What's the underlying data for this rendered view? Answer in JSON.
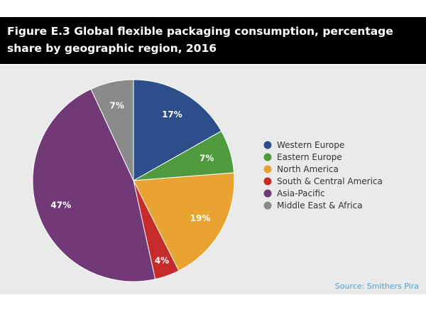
{
  "title": "Figure E.3 Global flexible packaging consumption, percentage share by geographic region, 2016",
  "source": "Source: Smithers Pira",
  "chart_data": {
    "type": "pie",
    "title": "Figure E.3 Global flexible packaging consumption, percentage share by geographic region, 2016",
    "slices": [
      {
        "name": "Western Europe",
        "value": 17,
        "label": "17%",
        "color": "#2c4e8a"
      },
      {
        "name": "Eastern Europe",
        "value": 7,
        "label": "7%",
        "color": "#4e9a3c"
      },
      {
        "name": "North America",
        "value": 19,
        "label": "19%",
        "color": "#e8a331"
      },
      {
        "name": "South & Central America",
        "value": 4,
        "label": "4%",
        "color": "#c62a2a"
      },
      {
        "name": "Asia-Pacific",
        "value": 47,
        "label": "47%",
        "color": "#713a76"
      },
      {
        "name": "Middle East & Africa",
        "value": 7,
        "label": "7%",
        "color": "#8a8a8a"
      }
    ],
    "legend_position": "right"
  }
}
